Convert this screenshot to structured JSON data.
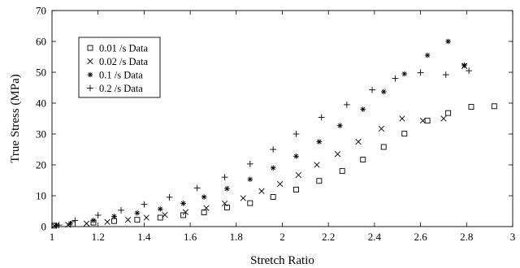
{
  "chart_data": {
    "type": "scatter",
    "title": "",
    "xlabel": "Stretch Ratio",
    "ylabel": "True Stress (MPa)",
    "xlim": [
      1,
      3
    ],
    "ylim": [
      0,
      70
    ],
    "xticks": [
      "1",
      "1.2",
      "1.4",
      "1.6",
      "1.8",
      "2",
      "2.2",
      "2.4",
      "2.6",
      "2.8",
      "3"
    ],
    "yticks": [
      "0",
      "10",
      "20",
      "30",
      "40",
      "50",
      "60",
      "70"
    ],
    "grid": false,
    "legend_position": "top-left",
    "series": [
      {
        "name": "0.01 /s Data",
        "marker": "square",
        "points": [
          [
            1.01,
            0.3
          ],
          [
            1.09,
            0.8
          ],
          [
            1.18,
            1.3
          ],
          [
            1.27,
            1.8
          ],
          [
            1.37,
            2.2
          ],
          [
            1.47,
            2.9
          ],
          [
            1.57,
            3.7
          ],
          [
            1.66,
            4.6
          ],
          [
            1.76,
            6.2
          ],
          [
            1.86,
            7.6
          ],
          [
            1.96,
            9.6
          ],
          [
            2.06,
            12.0
          ],
          [
            2.16,
            14.8
          ],
          [
            2.26,
            18.0
          ],
          [
            2.35,
            21.7
          ],
          [
            2.44,
            25.8
          ],
          [
            2.53,
            30.1
          ],
          [
            2.63,
            34.3
          ],
          [
            2.72,
            36.8
          ],
          [
            2.82,
            38.8
          ],
          [
            2.92,
            39.0
          ]
        ]
      },
      {
        "name": "0.02 /s Data",
        "marker": "x",
        "points": [
          [
            1.01,
            0.3
          ],
          [
            1.07,
            0.6
          ],
          [
            1.15,
            1.0
          ],
          [
            1.24,
            1.5
          ],
          [
            1.33,
            2.2
          ],
          [
            1.41,
            2.9
          ],
          [
            1.49,
            3.8
          ],
          [
            1.58,
            4.7
          ],
          [
            1.67,
            6.0
          ],
          [
            1.75,
            7.5
          ],
          [
            1.83,
            9.2
          ],
          [
            1.91,
            11.5
          ],
          [
            1.99,
            13.8
          ],
          [
            2.07,
            16.7
          ],
          [
            2.15,
            20.0
          ],
          [
            2.24,
            23.5
          ],
          [
            2.33,
            27.5
          ],
          [
            2.43,
            31.7
          ],
          [
            2.52,
            35.0
          ],
          [
            2.61,
            34.3
          ],
          [
            2.7,
            35.0
          ],
          [
            2.79,
            52.0
          ]
        ]
      },
      {
        "name": "0.1 /s Data",
        "marker": "asterisk",
        "points": [
          [
            1.02,
            0.4
          ],
          [
            1.08,
            1.0
          ],
          [
            1.18,
            2.0
          ],
          [
            1.27,
            3.3
          ],
          [
            1.37,
            4.4
          ],
          [
            1.47,
            5.7
          ],
          [
            1.57,
            7.5
          ],
          [
            1.66,
            9.6
          ],
          [
            1.76,
            12.3
          ],
          [
            1.86,
            15.3
          ],
          [
            1.96,
            19.0
          ],
          [
            2.06,
            22.8
          ],
          [
            2.16,
            27.5
          ],
          [
            2.25,
            32.7
          ],
          [
            2.35,
            38.0
          ],
          [
            2.44,
            43.7
          ],
          [
            2.53,
            49.5
          ],
          [
            2.63,
            55.5
          ],
          [
            2.72,
            60.0
          ],
          [
            2.79,
            52.3
          ]
        ]
      },
      {
        "name": "0.2 /s Data",
        "marker": "plus",
        "points": [
          [
            1.03,
            0.5
          ],
          [
            1.1,
            2.0
          ],
          [
            1.2,
            3.7
          ],
          [
            1.3,
            5.3
          ],
          [
            1.4,
            7.2
          ],
          [
            1.51,
            9.5
          ],
          [
            1.63,
            12.5
          ],
          [
            1.75,
            16.0
          ],
          [
            1.86,
            20.3
          ],
          [
            1.96,
            25.0
          ],
          [
            2.06,
            30.0
          ],
          [
            2.17,
            35.4
          ],
          [
            2.28,
            39.5
          ],
          [
            2.39,
            44.3
          ],
          [
            2.49,
            48.0
          ],
          [
            2.6,
            49.9
          ],
          [
            2.71,
            49.2
          ],
          [
            2.81,
            50.5
          ]
        ]
      }
    ]
  }
}
